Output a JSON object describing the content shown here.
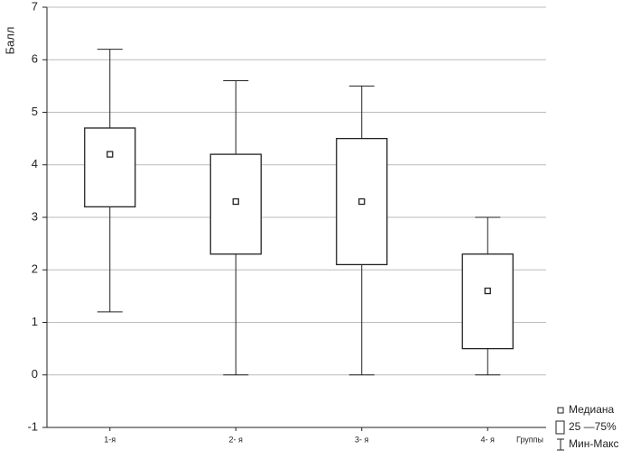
{
  "chart_data": {
    "type": "box",
    "ylabel": "Балл",
    "xlabel": "Группы",
    "categories": [
      "1-я",
      "2- я",
      "3- я",
      "4- я"
    ],
    "min": [
      1.2,
      0,
      0,
      0
    ],
    "q1": [
      3.2,
      2.3,
      2.1,
      0.5
    ],
    "median": [
      4.2,
      3.3,
      3.3,
      1.6
    ],
    "q3": [
      4.7,
      4.2,
      4.5,
      2.3
    ],
    "max": [
      6.2,
      5.6,
      5.5,
      3.0
    ],
    "ylim": [
      -1,
      7
    ],
    "yticks": [
      -1,
      0,
      1,
      2,
      3,
      4,
      5,
      6,
      7
    ],
    "grid": true,
    "legend": [
      "Медиана",
      "25 —75%",
      "Мин-Макс"
    ],
    "legend_position": "lower right",
    "color": "#222222"
  }
}
